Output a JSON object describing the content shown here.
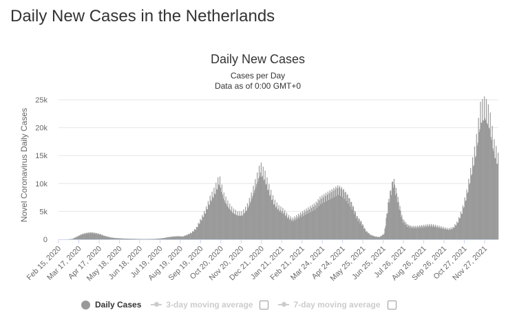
{
  "page": {
    "title": "Daily New Cases in the Netherlands"
  },
  "colors": {
    "bar": "#9a9a9a",
    "grid": "#e6e6e6",
    "axis_text": "#666666",
    "legend_off": "#cccccc"
  },
  "chart_data": {
    "type": "bar",
    "title": "Daily New Cases",
    "subtitle": "Cases per Day",
    "subtitle2": "Data as of 0:00 GMT+0",
    "ylabel": "Novel Coronavirus Daily Cases",
    "xlabel": "",
    "ylim": [
      0,
      25000
    ],
    "yticks": [
      0,
      5000,
      10000,
      15000,
      20000,
      25000
    ],
    "ytick_labels": [
      "0",
      "5k",
      "10k",
      "15k",
      "20k",
      "25k"
    ],
    "x_start": "2020-02-15",
    "x_end": "2021-12-18",
    "xtick_dates": [
      "2020-02-15",
      "2020-03-17",
      "2020-04-17",
      "2020-05-18",
      "2020-06-18",
      "2020-07-19",
      "2020-08-19",
      "2020-09-19",
      "2020-10-20",
      "2020-11-20",
      "2020-12-21",
      "2021-01-21",
      "2021-02-21",
      "2021-03-24",
      "2021-04-24",
      "2021-05-25",
      "2021-06-25",
      "2021-07-26",
      "2021-08-26",
      "2021-09-26",
      "2021-10-27",
      "2021-11-27"
    ],
    "xtick_labels": [
      "Feb 15, 2020",
      "Mar 17, 2020",
      "Apr 17, 2020",
      "May 18, 2020",
      "Jun 18, 2020",
      "Jul 19, 2020",
      "Aug 19, 2020",
      "Sep 19, 2020",
      "Oct 20, 2020",
      "Nov 20, 2020",
      "Dec 21, 2020",
      "Jan 21, 2021",
      "Feb 21, 2021",
      "Mar 24, 2021",
      "Apr 24, 2021",
      "May 25, 2021",
      "Jun 25, 2021",
      "Jul 26, 2021",
      "Aug 26, 2021",
      "Sep 26, 2021",
      "Oct 27, 2021",
      "Nov 27, 2021"
    ],
    "series": [
      {
        "name": "Daily Cases",
        "sampling": "weekly",
        "dates": [
          "2020-02-15",
          "2020-02-22",
          "2020-02-29",
          "2020-03-07",
          "2020-03-14",
          "2020-03-21",
          "2020-03-28",
          "2020-04-04",
          "2020-04-11",
          "2020-04-18",
          "2020-04-25",
          "2020-05-02",
          "2020-05-09",
          "2020-05-16",
          "2020-05-23",
          "2020-05-30",
          "2020-06-06",
          "2020-06-13",
          "2020-06-20",
          "2020-06-27",
          "2020-07-04",
          "2020-07-11",
          "2020-07-18",
          "2020-07-25",
          "2020-08-01",
          "2020-08-08",
          "2020-08-15",
          "2020-08-22",
          "2020-08-29",
          "2020-09-05",
          "2020-09-12",
          "2020-09-19",
          "2020-09-26",
          "2020-10-03",
          "2020-10-10",
          "2020-10-17",
          "2020-10-24",
          "2020-10-31",
          "2020-11-07",
          "2020-11-14",
          "2020-11-21",
          "2020-11-28",
          "2020-12-05",
          "2020-12-12",
          "2020-12-19",
          "2020-12-26",
          "2021-01-02",
          "2021-01-09",
          "2021-01-16",
          "2021-01-23",
          "2021-01-30",
          "2021-02-06",
          "2021-02-13",
          "2021-02-20",
          "2021-02-27",
          "2021-03-06",
          "2021-03-13",
          "2021-03-20",
          "2021-03-27",
          "2021-04-03",
          "2021-04-10",
          "2021-04-17",
          "2021-04-24",
          "2021-05-01",
          "2021-05-08",
          "2021-05-15",
          "2021-05-22",
          "2021-05-29",
          "2021-06-05",
          "2021-06-12",
          "2021-06-19",
          "2021-06-26",
          "2021-07-03",
          "2021-07-10",
          "2021-07-17",
          "2021-07-24",
          "2021-07-31",
          "2021-08-07",
          "2021-08-14",
          "2021-08-21",
          "2021-08-28",
          "2021-09-04",
          "2021-09-11",
          "2021-09-18",
          "2021-09-25",
          "2021-10-02",
          "2021-10-09",
          "2021-10-16",
          "2021-10-23",
          "2021-10-30",
          "2021-11-06",
          "2021-11-13",
          "2021-11-20",
          "2021-11-27",
          "2021-12-04",
          "2021-12-11",
          "2021-12-18"
        ],
        "values": [
          0,
          0,
          10,
          100,
          500,
          900,
          1100,
          1200,
          1100,
          900,
          600,
          400,
          250,
          200,
          150,
          120,
          100,
          80,
          60,
          60,
          70,
          90,
          150,
          250,
          400,
          500,
          550,
          500,
          800,
          1200,
          2000,
          3500,
          5000,
          7000,
          8500,
          10500,
          7500,
          6000,
          5000,
          4500,
          4500,
          5500,
          7500,
          10000,
          12500,
          11000,
          8500,
          6500,
          5500,
          5000,
          4000,
          3500,
          4000,
          4500,
          5000,
          5500,
          6000,
          7000,
          7500,
          8000,
          8500,
          9000,
          8500,
          7500,
          6000,
          4000,
          3000,
          1500,
          800,
          500,
          400,
          1000,
          7000,
          10500,
          7000,
          3500,
          2500,
          2200,
          2200,
          2300,
          2400,
          2500,
          2400,
          2200,
          2000,
          1800,
          2000,
          3000,
          5000,
          8000,
          12000,
          16000,
          22000,
          23000,
          21000,
          16000,
          13500
        ]
      }
    ],
    "legend": [
      {
        "label": "Daily Cases",
        "active": true
      },
      {
        "label": "3-day moving average",
        "active": false
      },
      {
        "label": "7-day moving average",
        "active": false
      }
    ]
  }
}
